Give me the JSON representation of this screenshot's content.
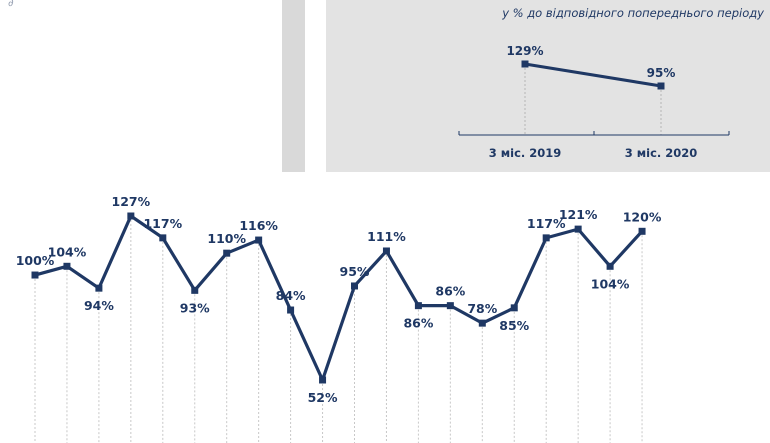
{
  "fragment": {
    "glyph": "∂"
  },
  "chart_data": [
    {
      "type": "line",
      "title": "у % до відповідного попереднього періоду",
      "categories": [
        "3 міс. 2019",
        "3 міс. 2020"
      ],
      "values": [
        129,
        95
      ],
      "value_suffix": "%",
      "label_position": [
        "above",
        "above"
      ],
      "colors": {
        "line": "#1f3864",
        "marker": "#1f3864",
        "background": "#e3e3e3"
      }
    },
    {
      "type": "line",
      "values": [
        100,
        104,
        94,
        127,
        117,
        93,
        110,
        116,
        84,
        52,
        95,
        111,
        86,
        86,
        78,
        85,
        117,
        121,
        104,
        120
      ],
      "value_suffix": "%",
      "label_position": [
        "above",
        "above",
        "below",
        "above",
        "above",
        "below",
        "above",
        "above",
        "above",
        "below",
        "above",
        "above",
        "below",
        "above",
        "above",
        "below",
        "above",
        "above",
        "below",
        "above"
      ],
      "colors": {
        "line": "#1f3864",
        "marker": "#1f3864",
        "grid": "#c8c8c8"
      }
    }
  ]
}
